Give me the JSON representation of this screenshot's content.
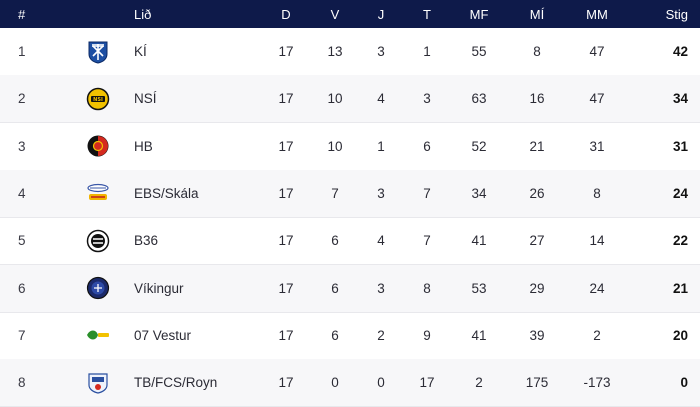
{
  "columns": {
    "pos": "#",
    "team": "Lið",
    "played": "D",
    "won": "V",
    "drawn": "J",
    "lost": "T",
    "goals_for": "MF",
    "goals_against": "MÍ",
    "goal_diff": "MM",
    "points": "Stig"
  },
  "rows": [
    {
      "pos": "1",
      "team": "KÍ",
      "logo": "ki-crest-icon",
      "played": "17",
      "won": "13",
      "drawn": "3",
      "lost": "1",
      "goals_for": "55",
      "goals_against": "8",
      "goal_diff": "47",
      "points": "42"
    },
    {
      "pos": "2",
      "team": "NSÍ",
      "logo": "nsi-crest-icon",
      "played": "17",
      "won": "10",
      "drawn": "4",
      "lost": "3",
      "goals_for": "63",
      "goals_against": "16",
      "goal_diff": "47",
      "points": "34"
    },
    {
      "pos": "3",
      "team": "HB",
      "logo": "hb-crest-icon",
      "played": "17",
      "won": "10",
      "drawn": "1",
      "lost": "6",
      "goals_for": "52",
      "goals_against": "21",
      "goal_diff": "31",
      "points": "31"
    },
    {
      "pos": "4",
      "team": "EBS/Skála",
      "logo": "ebs-skala-crest-icon",
      "played": "17",
      "won": "7",
      "drawn": "3",
      "lost": "7",
      "goals_for": "34",
      "goals_against": "26",
      "goal_diff": "8",
      "points": "24"
    },
    {
      "pos": "5",
      "team": "B36",
      "logo": "b36-crest-icon",
      "played": "17",
      "won": "6",
      "drawn": "4",
      "lost": "7",
      "goals_for": "41",
      "goals_against": "27",
      "goal_diff": "14",
      "points": "22"
    },
    {
      "pos": "6",
      "team": "Víkingur",
      "logo": "vikingur-crest-icon",
      "played": "17",
      "won": "6",
      "drawn": "3",
      "lost": "8",
      "goals_for": "53",
      "goals_against": "29",
      "goal_diff": "24",
      "points": "21"
    },
    {
      "pos": "7",
      "team": "07 Vestur",
      "logo": "07-vestur-crest-icon",
      "played": "17",
      "won": "6",
      "drawn": "2",
      "lost": "9",
      "goals_for": "41",
      "goals_against": "39",
      "goal_diff": "2",
      "points": "20"
    },
    {
      "pos": "8",
      "team": "TB/FCS/Royn",
      "logo": "tb-fcs-royn-crest-icon",
      "played": "17",
      "won": "0",
      "drawn": "0",
      "lost": "17",
      "goals_for": "2",
      "goals_against": "175",
      "goal_diff": "-173",
      "points": "0"
    }
  ],
  "colors": {
    "header_bg": "#0e1a4a",
    "header_text": "#ffffff",
    "row_alt_bg": "#f7f7f9"
  }
}
